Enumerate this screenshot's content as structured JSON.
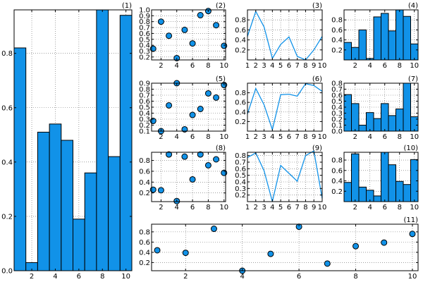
{
  "colors": {
    "fill": "#1192e8",
    "edge": "#000000",
    "background": "#ffffff"
  },
  "chart_data": [
    {
      "title": "(1)",
      "type": "bar",
      "x": [
        1,
        2,
        3,
        4,
        5,
        6,
        7,
        8,
        9,
        10
      ],
      "values": [
        0.82,
        0.03,
        0.51,
        0.54,
        0.48,
        0.19,
        0.36,
        0.96,
        0.42,
        0.94
      ],
      "xlim": [
        0.5,
        10.5
      ],
      "ylim": [
        0,
        0.96
      ],
      "xticks": [
        2,
        4,
        6,
        8,
        10
      ],
      "yticks": [
        0.0,
        0.2,
        0.4,
        0.6,
        0.8
      ],
      "xtick_labels": [
        "2",
        "4",
        "6",
        "8",
        "10"
      ],
      "ytick_labels": [
        "0.0",
        "0.2",
        "0.4",
        "0.6",
        "0.8"
      ],
      "grid": true
    },
    {
      "title": "(2)",
      "type": "scatter",
      "x": [
        1,
        2,
        3,
        4,
        5,
        6,
        7,
        8,
        9,
        10
      ],
      "values": [
        0.34,
        0.8,
        0.56,
        0.18,
        0.66,
        0.43,
        0.91,
        0.98,
        0.74,
        0.39
      ],
      "xlim": [
        0.8,
        10.2
      ],
      "ylim": [
        0.15,
        1.0
      ],
      "xticks": [
        2,
        4,
        6,
        8,
        10
      ],
      "yticks": [
        0.2,
        0.3,
        0.4,
        0.5,
        0.6,
        0.7,
        0.8,
        0.9,
        1.0
      ],
      "xtick_labels": [
        "2",
        "4",
        "6",
        "8",
        "10"
      ],
      "ytick_labels": [
        "0.2",
        "0.3",
        "0.4",
        "0.5",
        "0.6",
        "0.7",
        "0.8",
        "0.9",
        "1.0"
      ],
      "grid": true
    },
    {
      "title": "(3)",
      "type": "line",
      "x": [
        1,
        2,
        3,
        4,
        5,
        6,
        7,
        8,
        9,
        10
      ],
      "values": [
        0.47,
        0.97,
        0.66,
        0.03,
        0.31,
        0.46,
        0.07,
        0.0,
        0.2,
        0.47
      ],
      "xlim": [
        1,
        10
      ],
      "ylim": [
        0,
        1.0
      ],
      "xticks": [
        1,
        2,
        3,
        4,
        5,
        6,
        7,
        8,
        9,
        10
      ],
      "yticks": [
        0.2,
        0.4,
        0.6,
        0.8
      ],
      "xtick_labels": [
        "1",
        "2",
        "3",
        "4",
        "5",
        "6",
        "7",
        "8",
        "9",
        "10"
      ],
      "ytick_labels": [
        "0.2",
        "0.4",
        "0.6",
        "0.8"
      ],
      "grid": true
    },
    {
      "title": "(4)",
      "type": "bar",
      "x": [
        1,
        2,
        3,
        4,
        5,
        6,
        7,
        8,
        9,
        10
      ],
      "values": [
        0.35,
        0.25,
        0.6,
        0.03,
        0.86,
        0.93,
        0.58,
        1.0,
        0.87,
        0.32
      ],
      "xlim": [
        0.5,
        10.5
      ],
      "ylim": [
        0,
        1.0
      ],
      "xticks": [
        2,
        4,
        6,
        8,
        10
      ],
      "yticks": [
        0.2,
        0.4,
        0.6,
        0.8
      ],
      "xtick_labels": [
        "2",
        "4",
        "6",
        "8",
        "10"
      ],
      "ytick_labels": [
        "0.2",
        "0.4",
        "0.6",
        "0.8"
      ],
      "grid": true
    },
    {
      "title": "(5)",
      "type": "scatter",
      "x": [
        1,
        2,
        3,
        4,
        5,
        6,
        7,
        8,
        9,
        10
      ],
      "values": [
        0.27,
        0.1,
        0.53,
        0.9,
        0.13,
        0.37,
        0.47,
        0.73,
        0.66,
        0.87
      ],
      "xlim": [
        0.8,
        10.2
      ],
      "ylim": [
        0.1,
        0.9
      ],
      "xticks": [
        2,
        4,
        6,
        8,
        10
      ],
      "yticks": [
        0.1,
        0.2,
        0.3,
        0.4,
        0.5,
        0.6,
        0.7,
        0.8,
        0.9
      ],
      "xtick_labels": [
        "2",
        "4",
        "6",
        "8",
        "10"
      ],
      "ytick_labels": [
        "0.1",
        "0.2",
        "0.3",
        "0.4",
        "0.5",
        "0.6",
        "0.7",
        "0.8",
        "0.9"
      ],
      "grid": true
    },
    {
      "title": "(6)",
      "type": "line",
      "x": [
        1,
        2,
        3,
        4,
        5,
        6,
        7,
        8,
        9,
        10
      ],
      "values": [
        0.36,
        0.89,
        0.55,
        0.03,
        0.76,
        0.77,
        0.73,
        0.99,
        0.95,
        0.83
      ],
      "xlim": [
        1,
        10
      ],
      "ylim": [
        0,
        1.0
      ],
      "xticks": [
        1,
        2,
        3,
        4,
        5,
        6,
        7,
        8,
        9,
        10
      ],
      "yticks": [
        0.2,
        0.4,
        0.6,
        0.8
      ],
      "xtick_labels": [
        "1",
        "2",
        "3",
        "4",
        "5",
        "6",
        "7",
        "8",
        "9",
        "10"
      ],
      "ytick_labels": [
        "0.2",
        "0.4",
        "0.6",
        "0.8"
      ],
      "grid": true
    },
    {
      "title": "(7)",
      "type": "bar",
      "x": [
        1,
        2,
        3,
        4,
        5,
        6,
        7,
        8,
        9,
        10
      ],
      "values": [
        0.61,
        0.46,
        0.1,
        0.31,
        0.21,
        0.46,
        0.26,
        0.37,
        0.8,
        0.24
      ],
      "xlim": [
        0.5,
        10.5
      ],
      "ylim": [
        0,
        0.8
      ],
      "xticks": [
        2,
        4,
        6,
        8,
        10
      ],
      "yticks": [
        0.0,
        0.1,
        0.2,
        0.3,
        0.4,
        0.5,
        0.6,
        0.7,
        0.8
      ],
      "xtick_labels": [
        "2",
        "4",
        "6",
        "8",
        "10"
      ],
      "ytick_labels": [
        "0.0",
        "0.1",
        "0.2",
        "0.3",
        "0.4",
        "0.5",
        "0.6",
        "0.7",
        "0.8"
      ],
      "grid": true
    },
    {
      "title": "(8)",
      "type": "scatter",
      "x": [
        1,
        2,
        3,
        4,
        5,
        6,
        7,
        8,
        9,
        10
      ],
      "values": [
        0.26,
        0.25,
        0.91,
        0.05,
        0.87,
        0.45,
        0.91,
        0.71,
        0.82,
        0.57
      ],
      "xlim": [
        0.8,
        10.2
      ],
      "ylim": [
        0.04,
        0.95
      ],
      "xticks": [
        2,
        4,
        6,
        8,
        10
      ],
      "yticks": [
        0.2,
        0.4,
        0.6,
        0.8
      ],
      "xtick_labels": [
        "2",
        "4",
        "6",
        "8",
        "10"
      ],
      "ytick_labels": [
        "0.2",
        "0.4",
        "0.6",
        "0.8"
      ],
      "grid": true
    },
    {
      "title": "(9)",
      "type": "line",
      "x": [
        1,
        2,
        3,
        4,
        5,
        6,
        7,
        8,
        9,
        10
      ],
      "values": [
        0.77,
        0.84,
        0.57,
        0.1,
        0.65,
        0.53,
        0.41,
        0.8,
        0.87,
        0.15
      ],
      "xlim": [
        1,
        10
      ],
      "ylim": [
        0.1,
        0.85
      ],
      "xticks": [
        1,
        2,
        3,
        4,
        5,
        6,
        7,
        8,
        9,
        10
      ],
      "yticks": [
        0.2,
        0.3,
        0.4,
        0.5,
        0.6,
        0.7,
        0.8
      ],
      "xtick_labels": [
        "1",
        "2",
        "3",
        "4",
        "5",
        "6",
        "7",
        "8",
        "9",
        "10"
      ],
      "ytick_labels": [
        "0.2",
        "0.3",
        "0.4",
        "0.5",
        "0.6",
        "0.7",
        "0.8"
      ],
      "grid": true
    },
    {
      "title": "(10)",
      "type": "bar",
      "x": [
        1,
        2,
        3,
        4,
        5,
        6,
        7,
        8,
        9,
        10
      ],
      "values": [
        0.37,
        0.92,
        0.28,
        0.22,
        0.11,
        0.95,
        0.71,
        0.39,
        0.33,
        0.81
      ],
      "xlim": [
        0.5,
        10.5
      ],
      "ylim": [
        0,
        0.95
      ],
      "xticks": [
        2,
        4,
        6,
        8,
        10
      ],
      "yticks": [
        0.2,
        0.4,
        0.6,
        0.8
      ],
      "xtick_labels": [
        "2",
        "4",
        "6",
        "8",
        "10"
      ],
      "ytick_labels": [
        "0.2",
        "0.4",
        "0.6",
        "0.8"
      ],
      "grid": true
    },
    {
      "title": "(11)",
      "type": "scatter",
      "x": [
        1,
        2,
        3,
        4,
        5,
        6,
        7,
        8,
        9,
        10
      ],
      "values": [
        0.44,
        0.39,
        0.86,
        0.04,
        0.37,
        0.9,
        0.18,
        0.52,
        0.59,
        0.76
      ],
      "xlim": [
        0.8,
        10.2
      ],
      "ylim": [
        0.04,
        0.95
      ],
      "xticks": [
        2,
        4,
        6,
        8,
        10
      ],
      "yticks": [
        0.2,
        0.4,
        0.6,
        0.8
      ],
      "xtick_labels": [
        "2",
        "4",
        "6",
        "8",
        "10"
      ],
      "ytick_labels": [
        "0.2",
        "0.4",
        "0.6",
        "0.8"
      ],
      "grid": true
    }
  ]
}
